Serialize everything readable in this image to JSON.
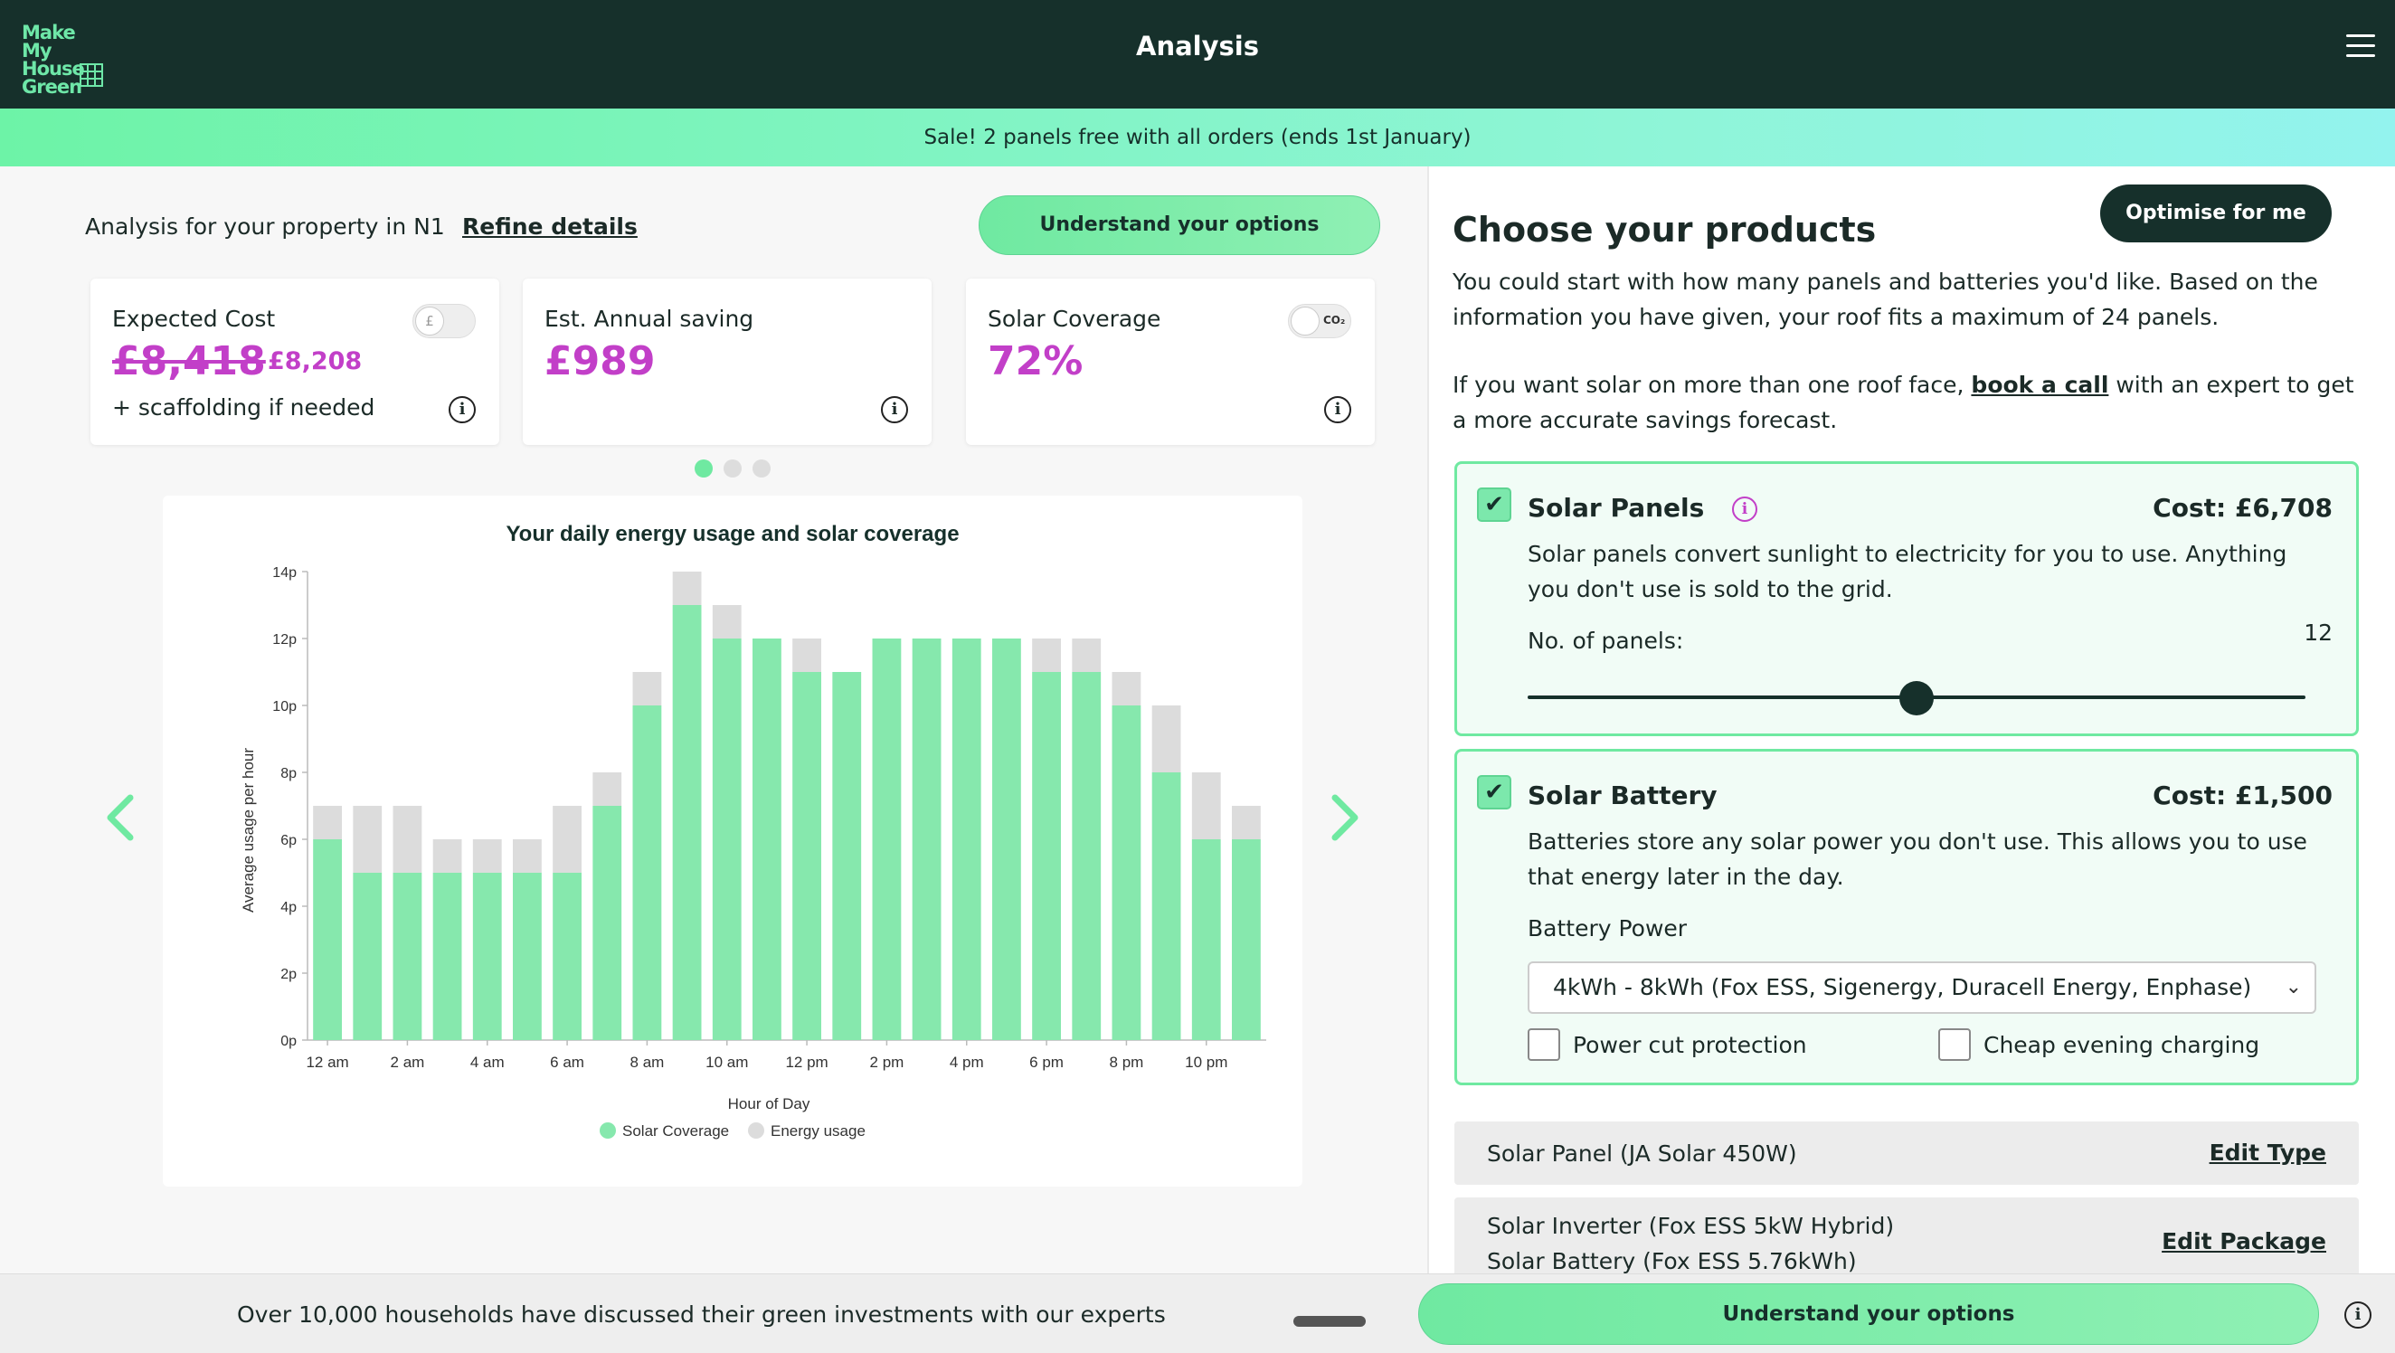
{
  "header": {
    "logo_text": "Make My House Green",
    "title": "Analysis",
    "menu_icon": "hamburger-icon"
  },
  "banner": {
    "text": "Sale! 2 panels free with all orders (ends 1st January)"
  },
  "analysis": {
    "property_text": "Analysis for your property in N1",
    "refine_link": "Refine details",
    "understand_button": "Understand your options"
  },
  "cards": {
    "cost": {
      "label": "Expected Cost",
      "old_price": "£8,418",
      "new_price": "£8,208",
      "note": "+ scaffolding if needed",
      "toggle_label": "£"
    },
    "saving": {
      "label": "Est. Annual saving",
      "value": "£989"
    },
    "coverage": {
      "label": "Solar Coverage",
      "value": "72%",
      "toggle_label": "CO₂"
    }
  },
  "carousel": {
    "dot_count": 3,
    "active_dot": 0
  },
  "chart_data": {
    "type": "bar",
    "title": "Your daily energy usage and solar coverage",
    "xlabel": "Hour of Day",
    "ylabel": "Average usage per hour",
    "ylim": [
      0,
      14
    ],
    "yticks": [
      "0p",
      "2p",
      "4p",
      "6p",
      "8p",
      "10p",
      "12p",
      "14p"
    ],
    "xtick_labels": [
      "12 am",
      "2 am",
      "4 am",
      "6 am",
      "8 am",
      "10 am",
      "12 pm",
      "2 pm",
      "4 pm",
      "6 pm",
      "8 pm",
      "10 pm"
    ],
    "categories": [
      "0",
      "1",
      "2",
      "3",
      "4",
      "5",
      "6",
      "7",
      "8",
      "9",
      "10",
      "11",
      "12",
      "13",
      "14",
      "15",
      "16",
      "17",
      "18",
      "19",
      "20",
      "21",
      "22",
      "23"
    ],
    "stacked": true,
    "series": [
      {
        "name": "Solar Coverage",
        "color": "#86e8ad",
        "values": [
          6,
          5,
          5,
          5,
          5,
          5,
          5,
          7,
          10,
          13,
          12,
          12,
          11,
          11,
          12,
          12,
          12,
          12,
          11,
          11,
          10,
          8,
          6,
          6
        ]
      },
      {
        "name": "Energy usage",
        "color": "#dcdcdc",
        "values": [
          1,
          2,
          2,
          1,
          1,
          1,
          2,
          1,
          1,
          1,
          1,
          0,
          1,
          0,
          0,
          0,
          0,
          0,
          1,
          1,
          1,
          2,
          2,
          1
        ]
      }
    ],
    "grid": false,
    "legend": "bottom"
  },
  "bottom_bar": {
    "text": "Over 10,000 households have discussed their green investments with our experts",
    "button": "Understand your options"
  },
  "products": {
    "title": "Choose your products",
    "optimise_button": "Optimise for me",
    "intro": "You could start with how many panels and batteries you'd like. Based on the information you have given, your roof fits a maximum of 24 panels.",
    "call_prefix": "If you want solar on more than one roof face,",
    "call_link": "book a call",
    "call_suffix": "with an expert to get a more accurate savings forecast.",
    "panels": {
      "name": "Solar Panels",
      "cost": "Cost: £6,708",
      "desc": "Solar panels convert sunlight to electricity for you to use. Anything you don't use is sold to the grid.",
      "count_label": "No. of panels:",
      "count": "12",
      "max": 24,
      "checked": true
    },
    "battery": {
      "name": "Solar Battery",
      "cost": "Cost: £1,500",
      "desc": "Batteries store any solar power you don't use. This allows you to use that energy later in the day.",
      "power_label": "Battery Power",
      "power_selected": "4kWh - 8kWh (Fox ESS, Sigenergy, Duracell Energy, Enphase)",
      "option1": "Power cut protection",
      "option2": "Cheap evening charging",
      "checked": true
    },
    "panel_type": {
      "text": "Solar Panel (JA Solar 450W)",
      "edit": "Edit Type"
    },
    "package": {
      "line1": "Solar Inverter (Fox ESS 5kW Hybrid)",
      "line2": "Solar Battery (Fox ESS 5.76kWh)",
      "edit": "Edit Package"
    }
  },
  "colors": {
    "dark": "#16302b",
    "accent": "#6fe9a1",
    "price": "#c23fc8"
  }
}
